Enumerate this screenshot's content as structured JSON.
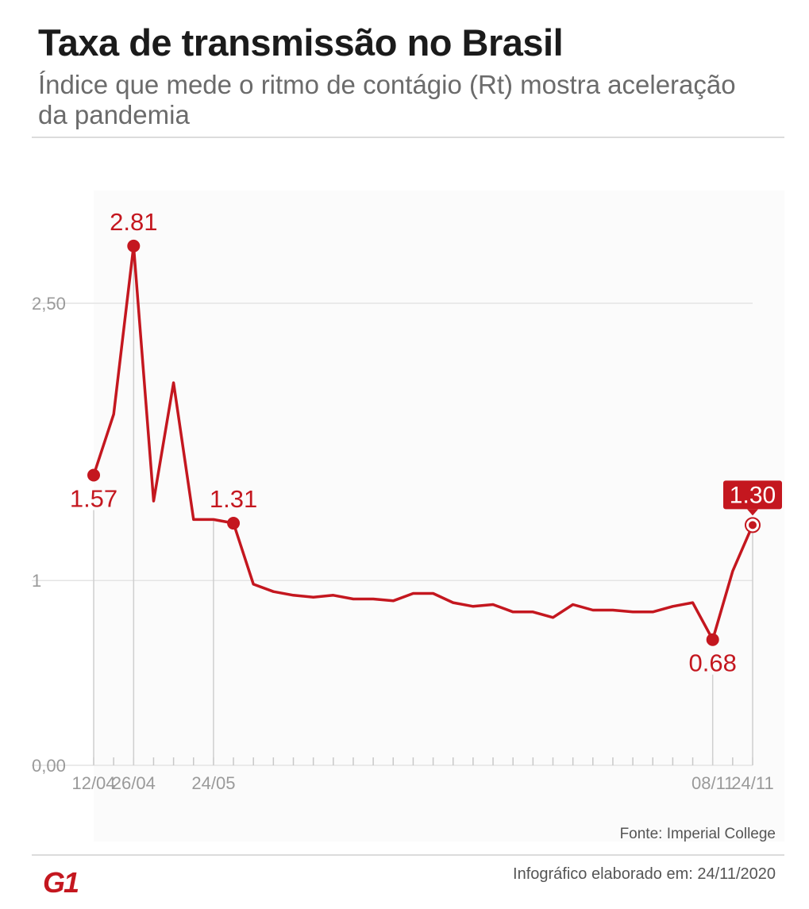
{
  "title": "Taxa de transmissão no Brasil",
  "subtitle": "Índice que mede o ritmo de contágio (Rt) mostra aceleração da pandemia",
  "chart_data": {
    "type": "line",
    "title": "Taxa de transmissão no Brasil",
    "series": [
      {
        "name": "Rt",
        "color": "#c4171f",
        "values": [
          1.57,
          1.9,
          2.81,
          1.43,
          2.07,
          1.33,
          1.33,
          1.31,
          0.98,
          0.94,
          0.92,
          0.91,
          0.92,
          0.9,
          0.9,
          0.89,
          0.93,
          0.93,
          0.88,
          0.86,
          0.87,
          0.83,
          0.83,
          0.8,
          0.87,
          0.84,
          0.84,
          0.83,
          0.83,
          0.86,
          0.88,
          0.68,
          1.05,
          1.3
        ]
      }
    ],
    "x_tick_labels": [
      {
        "index": 0,
        "label": "12/04"
      },
      {
        "index": 2,
        "label": "26/04"
      },
      {
        "index": 6,
        "label": "24/05"
      },
      {
        "index": 31,
        "label": "08/11"
      },
      {
        "index": 33,
        "label": "24/11"
      }
    ],
    "annotations": [
      {
        "index": 0,
        "label": "1.57",
        "position": "below"
      },
      {
        "index": 2,
        "label": "2.81",
        "position": "above"
      },
      {
        "index": 7,
        "label": "1.31",
        "position": "above"
      },
      {
        "index": 31,
        "label": "0.68",
        "position": "below"
      },
      {
        "index": 33,
        "label": "1.30",
        "position": "above",
        "style": "highlight"
      }
    ],
    "y_ticks": [
      {
        "value": 0,
        "label": "0,00"
      },
      {
        "value": 1,
        "label": "1"
      },
      {
        "value": 2.5,
        "label": "2,50"
      }
    ],
    "ylim": [
      0,
      3.05
    ],
    "xlabel": "",
    "ylabel": "",
    "grid": true
  },
  "footer": {
    "source": "Fonte: Imperial College",
    "credit": "Infográfico elaborado em: 24/11/2020",
    "logo": "G1"
  },
  "colors": {
    "accent": "#c4171f",
    "grid": "#e4e4e4",
    "axis_text": "#9a9a9a"
  }
}
